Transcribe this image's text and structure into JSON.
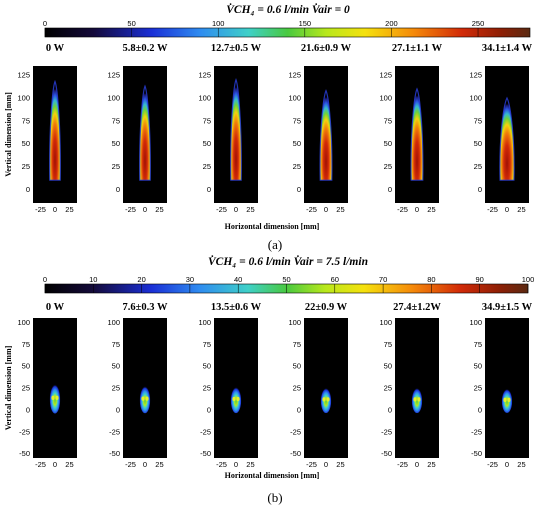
{
  "chart_data": [
    {
      "type": "heatmap",
      "caption": "(a)",
      "title": "V̇CH₄ = 0.6 l/min  V̇air = 0",
      "colorbar": {
        "ticks": [
          "0",
          "50",
          "100",
          "150",
          "200",
          "250"
        ],
        "range": [
          0,
          280
        ]
      },
      "xlabel": "Horizontal dimension [mm]",
      "ylabel": "Vertical dimension [mm]",
      "xticks": [
        "-25",
        "0",
        "25"
      ],
      "yticks": [
        "125",
        "100",
        "75",
        "50",
        "25",
        "0"
      ],
      "xlim": [
        -38,
        38
      ],
      "ylim": [
        -15,
        135
      ],
      "panels": [
        {
          "title": "0 W",
          "peak": 255,
          "height": 118,
          "width": 9
        },
        {
          "title": "5.8±0.2 W",
          "peak": 240,
          "height": 113,
          "width": 9
        },
        {
          "title": "12.7±0.5 W",
          "peak": 255,
          "height": 120,
          "width": 9
        },
        {
          "title": "21.6±0.9 W",
          "peak": 225,
          "height": 108,
          "width": 10
        },
        {
          "title": "27.1±1.1 W",
          "peak": 235,
          "height": 110,
          "width": 10
        },
        {
          "title": "34.1±1.4 W",
          "peak": 200,
          "height": 100,
          "width": 12
        }
      ]
    },
    {
      "type": "heatmap",
      "caption": "(b)",
      "title": "V̇CH₄ = 0.6 l/min  V̇air = 7.5 l/min",
      "colorbar": {
        "ticks": [
          "0",
          "10",
          "20",
          "30",
          "40",
          "50",
          "60",
          "70",
          "80",
          "90",
          "100"
        ],
        "range": [
          0,
          100
        ]
      },
      "xlabel": "Horizontal dimension [mm]",
      "ylabel": "Vertical dimension [mm]",
      "xticks": [
        "-25",
        "0",
        "25"
      ],
      "yticks": [
        "100",
        "75",
        "50",
        "25",
        "0",
        "-25",
        "-50"
      ],
      "xlim": [
        -38,
        38
      ],
      "ylim": [
        -55,
        105
      ],
      "panels": [
        {
          "title": "0 W",
          "peak": 62,
          "height": 28,
          "width": 9
        },
        {
          "title": "7.6±0.3 W",
          "peak": 60,
          "height": 26,
          "width": 9
        },
        {
          "title": "13.5±0.6 W",
          "peak": 58,
          "height": 25,
          "width": 9
        },
        {
          "title": "22±0.9 W",
          "peak": 55,
          "height": 24,
          "width": 9
        },
        {
          "title": "27.4±1.2W",
          "peak": 56,
          "height": 24,
          "width": 9
        },
        {
          "title": "34.9±1.5 W",
          "peak": 54,
          "height": 23,
          "width": 9
        }
      ]
    }
  ]
}
